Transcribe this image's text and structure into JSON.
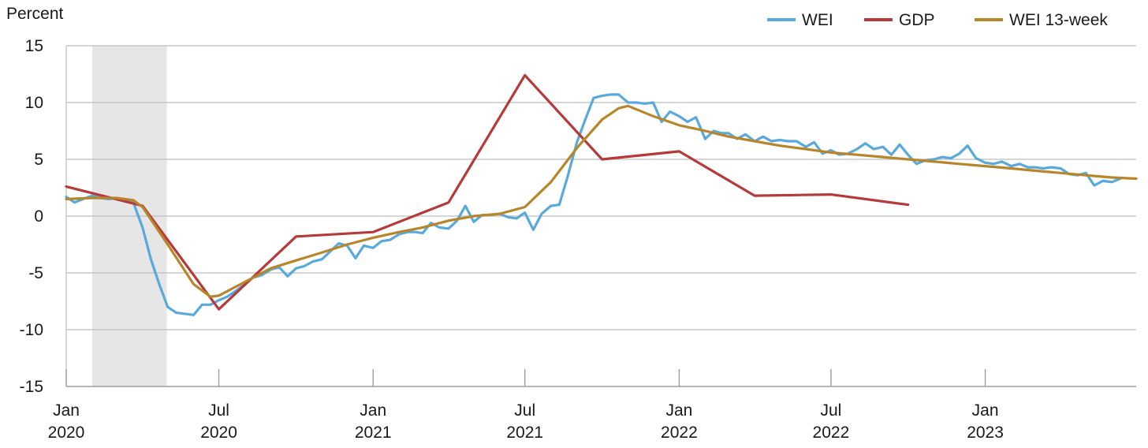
{
  "chart_data": {
    "type": "line",
    "ylabel": "Percent",
    "ylim": [
      -15,
      15
    ],
    "yticks": [
      15,
      10,
      5,
      0,
      -5,
      -10,
      -15
    ],
    "xlim": [
      "2020-01-01",
      "2023-06-30"
    ],
    "xticks": [
      {
        "date": "2020-01-01",
        "month": "Jan",
        "year": "2020"
      },
      {
        "date": "2020-07-01",
        "month": "Jul",
        "year": "2020"
      },
      {
        "date": "2021-01-01",
        "month": "Jan",
        "year": "2021"
      },
      {
        "date": "2021-07-01",
        "month": "Jul",
        "year": "2021"
      },
      {
        "date": "2022-01-01",
        "month": "Jan",
        "year": "2022"
      },
      {
        "date": "2022-07-01",
        "month": "Jul",
        "year": "2022"
      },
      {
        "date": "2023-01-01",
        "month": "Jan",
        "year": "2023"
      }
    ],
    "grid": true,
    "legend_position": "top-right",
    "recession_band": [
      "2020-02-01",
      "2020-04-30"
    ],
    "series": [
      {
        "name": "WEI",
        "color": "#5aa9dc",
        "points": [
          [
            "2020-01-01",
            1.7
          ],
          [
            "2020-01-11",
            1.2
          ],
          [
            "2020-01-21",
            1.5
          ],
          [
            "2020-02-01",
            1.8
          ],
          [
            "2020-02-11",
            1.6
          ],
          [
            "2020-02-21",
            1.5
          ],
          [
            "2020-03-01",
            1.6
          ],
          [
            "2020-03-11",
            1.3
          ],
          [
            "2020-03-21",
            1.2
          ],
          [
            "2020-04-01",
            -1.0
          ],
          [
            "2020-04-11",
            -3.8
          ],
          [
            "2020-04-21",
            -6.0
          ],
          [
            "2020-05-01",
            -8.0
          ],
          [
            "2020-05-11",
            -8.5
          ],
          [
            "2020-05-21",
            -8.6
          ],
          [
            "2020-06-01",
            -8.7
          ],
          [
            "2020-06-11",
            -7.8
          ],
          [
            "2020-06-21",
            -7.8
          ],
          [
            "2020-07-01",
            -7.4
          ],
          [
            "2020-07-11",
            -7.1
          ],
          [
            "2020-07-21",
            -6.6
          ],
          [
            "2020-08-01",
            -6.0
          ],
          [
            "2020-08-11",
            -5.4
          ],
          [
            "2020-08-21",
            -5.2
          ],
          [
            "2020-09-01",
            -4.7
          ],
          [
            "2020-09-11",
            -4.5
          ],
          [
            "2020-09-21",
            -5.3
          ],
          [
            "2020-10-01",
            -4.6
          ],
          [
            "2020-10-11",
            -4.4
          ],
          [
            "2020-10-21",
            -4.0
          ],
          [
            "2020-11-01",
            -3.8
          ],
          [
            "2020-11-11",
            -3.1
          ],
          [
            "2020-11-21",
            -2.4
          ],
          [
            "2020-12-01",
            -2.6
          ],
          [
            "2020-12-11",
            -3.7
          ],
          [
            "2020-12-21",
            -2.6
          ],
          [
            "2021-01-01",
            -2.8
          ],
          [
            "2021-01-11",
            -2.2
          ],
          [
            "2021-01-21",
            -2.1
          ],
          [
            "2021-02-01",
            -1.6
          ],
          [
            "2021-02-11",
            -1.4
          ],
          [
            "2021-02-21",
            -1.4
          ],
          [
            "2021-03-01",
            -1.5
          ],
          [
            "2021-03-11",
            -0.6
          ],
          [
            "2021-03-21",
            -1.0
          ],
          [
            "2021-04-01",
            -1.1
          ],
          [
            "2021-04-11",
            -0.4
          ],
          [
            "2021-04-21",
            0.9
          ],
          [
            "2021-05-01",
            -0.5
          ],
          [
            "2021-05-11",
            0.1
          ],
          [
            "2021-05-21",
            0.1
          ],
          [
            "2021-06-01",
            0.2
          ],
          [
            "2021-06-11",
            -0.1
          ],
          [
            "2021-06-21",
            -0.2
          ],
          [
            "2021-07-01",
            0.3
          ],
          [
            "2021-07-11",
            -1.2
          ],
          [
            "2021-07-21",
            0.2
          ],
          [
            "2021-08-01",
            0.9
          ],
          [
            "2021-08-11",
            1.0
          ],
          [
            "2021-08-21",
            3.5
          ],
          [
            "2021-09-01",
            6.5
          ],
          [
            "2021-09-11",
            8.5
          ],
          [
            "2021-09-21",
            10.4
          ],
          [
            "2021-10-01",
            10.6
          ],
          [
            "2021-10-11",
            10.7
          ],
          [
            "2021-10-21",
            10.7
          ],
          [
            "2021-11-01",
            10.0
          ],
          [
            "2021-11-11",
            10.0
          ],
          [
            "2021-11-21",
            9.9
          ],
          [
            "2021-12-01",
            10.0
          ],
          [
            "2021-12-11",
            8.3
          ],
          [
            "2021-12-21",
            9.2
          ],
          [
            "2022-01-01",
            8.8
          ],
          [
            "2022-01-11",
            8.3
          ],
          [
            "2022-01-21",
            8.7
          ],
          [
            "2022-02-01",
            6.8
          ],
          [
            "2022-02-11",
            7.5
          ],
          [
            "2022-02-21",
            7.3
          ],
          [
            "2022-03-01",
            7.3
          ],
          [
            "2022-03-11",
            6.8
          ],
          [
            "2022-03-21",
            7.2
          ],
          [
            "2022-04-01",
            6.6
          ],
          [
            "2022-04-11",
            7.0
          ],
          [
            "2022-04-21",
            6.6
          ],
          [
            "2022-05-01",
            6.7
          ],
          [
            "2022-05-11",
            6.6
          ],
          [
            "2022-05-21",
            6.6
          ],
          [
            "2022-06-01",
            6.1
          ],
          [
            "2022-06-11",
            6.5
          ],
          [
            "2022-06-21",
            5.5
          ],
          [
            "2022-07-01",
            5.8
          ],
          [
            "2022-07-11",
            5.4
          ],
          [
            "2022-07-21",
            5.5
          ],
          [
            "2022-08-01",
            5.9
          ],
          [
            "2022-08-11",
            6.4
          ],
          [
            "2022-08-21",
            5.9
          ],
          [
            "2022-09-01",
            6.1
          ],
          [
            "2022-09-11",
            5.4
          ],
          [
            "2022-09-21",
            6.3
          ],
          [
            "2022-10-01",
            5.4
          ],
          [
            "2022-10-11",
            4.6
          ],
          [
            "2022-10-21",
            4.9
          ],
          [
            "2022-11-01",
            5.0
          ],
          [
            "2022-11-11",
            5.2
          ],
          [
            "2022-11-21",
            5.1
          ],
          [
            "2022-12-01",
            5.5
          ],
          [
            "2022-12-11",
            6.2
          ],
          [
            "2022-12-21",
            5.1
          ],
          [
            "2023-01-01",
            4.7
          ],
          [
            "2023-01-11",
            4.6
          ],
          [
            "2023-01-21",
            4.8
          ],
          [
            "2023-02-01",
            4.4
          ],
          [
            "2023-02-11",
            4.6
          ],
          [
            "2023-02-21",
            4.3
          ],
          [
            "2023-03-01",
            4.3
          ],
          [
            "2023-03-11",
            4.2
          ],
          [
            "2023-03-21",
            4.3
          ],
          [
            "2023-04-01",
            4.2
          ],
          [
            "2023-04-11",
            3.7
          ],
          [
            "2023-04-21",
            3.6
          ],
          [
            "2023-05-01",
            3.8
          ],
          [
            "2023-05-11",
            2.7
          ],
          [
            "2023-05-21",
            3.1
          ],
          [
            "2023-06-01",
            3.0
          ],
          [
            "2023-06-11",
            3.3
          ]
        ]
      },
      {
        "name": "GDP",
        "color": "#b63a3a",
        "points": [
          [
            "2020-01-01",
            2.6
          ],
          [
            "2020-04-01",
            0.9
          ],
          [
            "2020-07-01",
            -8.2
          ],
          [
            "2020-10-01",
            -1.8
          ],
          [
            "2021-01-01",
            -1.4
          ],
          [
            "2021-04-01",
            1.2
          ],
          [
            "2021-07-01",
            12.4
          ],
          [
            "2021-10-01",
            5.0
          ],
          [
            "2022-01-01",
            5.7
          ],
          [
            "2022-04-01",
            1.8
          ],
          [
            "2022-07-01",
            1.9
          ],
          [
            "2022-10-01",
            1.0
          ]
        ]
      },
      {
        "name": "WEI 13-week",
        "color": "#b8862a",
        "points": [
          [
            "2020-01-01",
            1.5
          ],
          [
            "2020-02-01",
            1.6
          ],
          [
            "2020-03-01",
            1.6
          ],
          [
            "2020-03-21",
            1.4
          ],
          [
            "2020-04-01",
            0.8
          ],
          [
            "2020-05-01",
            -2.5
          ],
          [
            "2020-06-01",
            -6.0
          ],
          [
            "2020-06-21",
            -7.1
          ],
          [
            "2020-07-01",
            -7.0
          ],
          [
            "2020-08-01",
            -5.8
          ],
          [
            "2020-09-01",
            -4.6
          ],
          [
            "2020-10-01",
            -3.9
          ],
          [
            "2020-11-01",
            -3.2
          ],
          [
            "2020-12-01",
            -2.5
          ],
          [
            "2021-01-01",
            -1.9
          ],
          [
            "2021-02-01",
            -1.4
          ],
          [
            "2021-03-01",
            -1.0
          ],
          [
            "2021-04-01",
            -0.4
          ],
          [
            "2021-05-01",
            0.0
          ],
          [
            "2021-06-01",
            0.2
          ],
          [
            "2021-07-01",
            0.8
          ],
          [
            "2021-08-01",
            3.0
          ],
          [
            "2021-09-01",
            6.0
          ],
          [
            "2021-10-01",
            8.5
          ],
          [
            "2021-10-21",
            9.5
          ],
          [
            "2021-11-01",
            9.7
          ],
          [
            "2021-12-01",
            8.8
          ],
          [
            "2022-01-01",
            8.0
          ],
          [
            "2022-02-01",
            7.5
          ],
          [
            "2022-03-01",
            7.0
          ],
          [
            "2022-04-01",
            6.6
          ],
          [
            "2022-05-01",
            6.2
          ],
          [
            "2022-06-01",
            5.9
          ],
          [
            "2022-07-01",
            5.6
          ],
          [
            "2022-08-01",
            5.4
          ],
          [
            "2022-09-01",
            5.2
          ],
          [
            "2022-10-01",
            5.0
          ],
          [
            "2022-11-01",
            4.8
          ],
          [
            "2022-12-01",
            4.6
          ],
          [
            "2023-01-01",
            4.4
          ],
          [
            "2023-02-01",
            4.2
          ],
          [
            "2023-03-01",
            4.0
          ],
          [
            "2023-04-01",
            3.8
          ],
          [
            "2023-05-01",
            3.6
          ],
          [
            "2023-06-01",
            3.4
          ],
          [
            "2023-06-30",
            3.3
          ]
        ]
      }
    ]
  }
}
